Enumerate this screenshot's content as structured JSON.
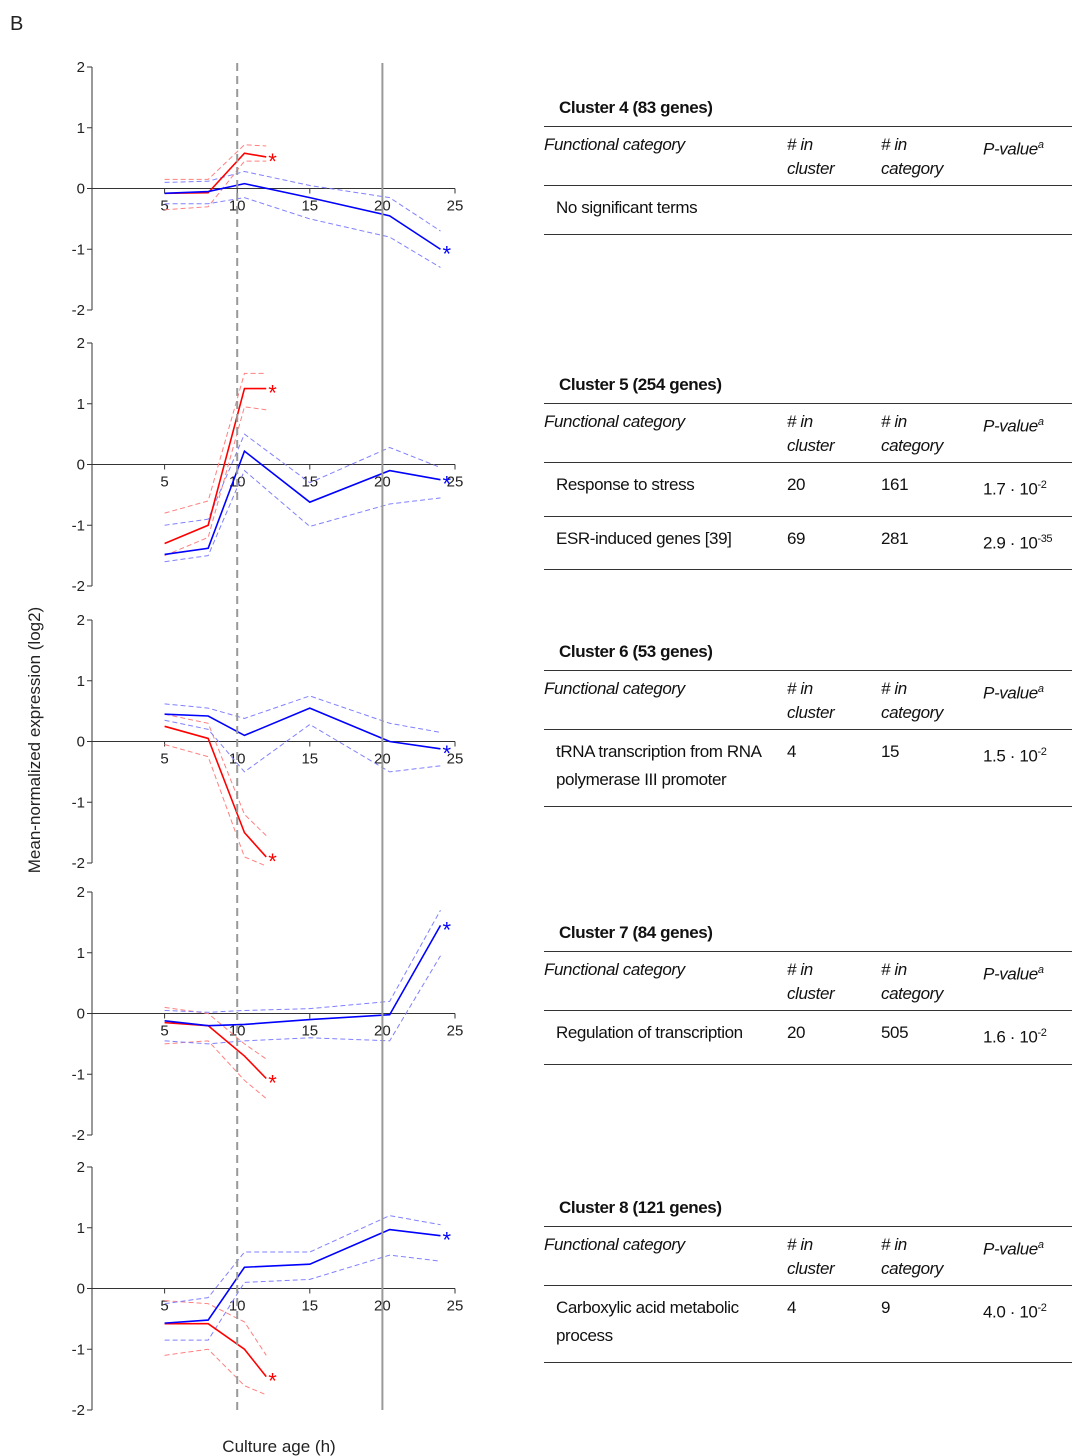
{
  "panel_label": "B",
  "ylabel": "Mean-normalized expression (log2)",
  "xlabel": "Culture age (h)",
  "reference_lines": [
    {
      "x": 10,
      "linestyle": "dashed",
      "color": "#999999"
    },
    {
      "x": 20,
      "linestyle": "solid",
      "color": "#999999"
    }
  ],
  "chart_data": [
    {
      "type": "line",
      "xlim": [
        0,
        25
      ],
      "ylim": [
        -2,
        2
      ],
      "xticks": [
        5,
        10,
        15,
        20,
        25
      ],
      "yticks": [
        -2,
        -1,
        0,
        1,
        2
      ],
      "series": [
        {
          "color": "#ff8080",
          "linestyle": "dashed",
          "x": [
            5,
            8,
            10.5,
            12
          ],
          "values": [
            0.15,
            0.15,
            0.72,
            0.7
          ]
        },
        {
          "color": "#ff8080",
          "linestyle": "dashed",
          "x": [
            5,
            8,
            10.5,
            12
          ],
          "values": [
            -0.35,
            -0.3,
            0.45,
            0.45
          ]
        },
        {
          "color": "#8080ff",
          "linestyle": "dashed",
          "x": [
            5,
            8,
            10.5,
            15,
            20.5,
            24
          ],
          "values": [
            0.1,
            0.12,
            0.28,
            0.05,
            -0.15,
            -0.7
          ]
        },
        {
          "color": "#8080ff",
          "linestyle": "dashed",
          "x": [
            5,
            8,
            10.5,
            15,
            20.5,
            24
          ],
          "values": [
            -0.25,
            -0.25,
            -0.15,
            -0.5,
            -0.8,
            -1.3
          ]
        },
        {
          "color": "#ff0000",
          "linestyle": "solid",
          "x": [
            5,
            8,
            10.5,
            12
          ],
          "values": [
            -0.08,
            -0.07,
            0.58,
            0.52
          ],
          "end_label": "*"
        },
        {
          "color": "#0000ff",
          "linestyle": "solid",
          "x": [
            5,
            8,
            10.5,
            15,
            20.5,
            24
          ],
          "values": [
            -0.08,
            -0.05,
            0.08,
            -0.15,
            -0.45,
            -1.0
          ],
          "end_label": "*"
        }
      ]
    },
    {
      "type": "line",
      "xlim": [
        0,
        25
      ],
      "ylim": [
        -2,
        2
      ],
      "xticks": [
        5,
        10,
        15,
        20,
        25
      ],
      "yticks": [
        -2,
        -1,
        0,
        1,
        2
      ],
      "series": [
        {
          "color": "#ff8080",
          "linestyle": "dashed",
          "x": [
            5,
            8,
            10.5,
            12
          ],
          "values": [
            -0.8,
            -0.6,
            1.5,
            1.5
          ]
        },
        {
          "color": "#ff8080",
          "linestyle": "dashed",
          "x": [
            5,
            8,
            10.5,
            12
          ],
          "values": [
            -1.5,
            -1.2,
            0.95,
            0.9
          ]
        },
        {
          "color": "#8080ff",
          "linestyle": "dashed",
          "x": [
            5,
            8,
            10.5,
            15,
            20.5,
            24
          ],
          "values": [
            -1.0,
            -0.9,
            0.5,
            -0.3,
            0.28,
            -0.05
          ]
        },
        {
          "color": "#8080ff",
          "linestyle": "dashed",
          "x": [
            5,
            8,
            10.5,
            15,
            20.5,
            24
          ],
          "values": [
            -1.6,
            -1.5,
            -0.1,
            -1.02,
            -0.65,
            -0.55
          ]
        },
        {
          "color": "#ff0000",
          "linestyle": "solid",
          "x": [
            5,
            8,
            10.5,
            12
          ],
          "values": [
            -1.3,
            -1.0,
            1.25,
            1.25
          ],
          "end_label": "*"
        },
        {
          "color": "#0000ff",
          "linestyle": "solid",
          "x": [
            5,
            8,
            10.5,
            15,
            20.5,
            24
          ],
          "values": [
            -1.48,
            -1.38,
            0.22,
            -0.62,
            -0.1,
            -0.25
          ],
          "end_label": "*"
        }
      ]
    },
    {
      "type": "line",
      "xlim": [
        0,
        25
      ],
      "ylim": [
        -2,
        2
      ],
      "xticks": [
        5,
        10,
        15,
        20,
        25
      ],
      "yticks": [
        -2,
        -1,
        0,
        1,
        2
      ],
      "series": [
        {
          "color": "#ff8080",
          "linestyle": "dashed",
          "x": [
            5,
            8,
            10.5,
            12
          ],
          "values": [
            0.45,
            0.3,
            -1.2,
            -1.55
          ]
        },
        {
          "color": "#ff8080",
          "linestyle": "dashed",
          "x": [
            5,
            8,
            10.5,
            12
          ],
          "values": [
            -0.05,
            -0.25,
            -1.9,
            -2.05
          ]
        },
        {
          "color": "#8080ff",
          "linestyle": "dashed",
          "x": [
            5,
            8,
            10.5,
            15,
            20.5,
            24
          ],
          "values": [
            0.62,
            0.55,
            0.38,
            0.75,
            0.3,
            0.15
          ]
        },
        {
          "color": "#8080ff",
          "linestyle": "dashed",
          "x": [
            5,
            8,
            10.5,
            15,
            20.5,
            24
          ],
          "values": [
            0.35,
            0.2,
            -0.5,
            0.28,
            -0.5,
            -0.4
          ]
        },
        {
          "color": "#ff0000",
          "linestyle": "solid",
          "x": [
            5,
            8,
            10.5,
            12
          ],
          "values": [
            0.25,
            0.05,
            -1.5,
            -1.9
          ],
          "end_label": "*"
        },
        {
          "color": "#0000ff",
          "linestyle": "solid",
          "x": [
            5,
            8,
            10.5,
            15,
            20.5,
            24
          ],
          "values": [
            0.45,
            0.42,
            0.1,
            0.55,
            0.0,
            -0.12
          ],
          "end_label": "*"
        }
      ]
    },
    {
      "type": "line",
      "xlim": [
        0,
        25
      ],
      "ylim": [
        -2,
        2
      ],
      "xticks": [
        5,
        10,
        15,
        20,
        25
      ],
      "yticks": [
        -2,
        -1,
        0,
        1,
        2
      ],
      "series": [
        {
          "color": "#ff8080",
          "linestyle": "dashed",
          "x": [
            5,
            8,
            10.5,
            12
          ],
          "values": [
            0.1,
            0,
            -0.5,
            -0.75
          ]
        },
        {
          "color": "#ff8080",
          "linestyle": "dashed",
          "x": [
            5,
            8,
            10.5,
            12
          ],
          "values": [
            -0.5,
            -0.45,
            -1.1,
            -1.4
          ]
        },
        {
          "color": "#8080ff",
          "linestyle": "dashed",
          "x": [
            5,
            8,
            10.5,
            15,
            20.5,
            24
          ],
          "values": [
            0.05,
            0.02,
            0.05,
            0.08,
            0.2,
            1.7
          ]
        },
        {
          "color": "#8080ff",
          "linestyle": "dashed",
          "x": [
            5,
            8,
            10.5,
            15,
            20.5,
            24
          ],
          "values": [
            -0.45,
            -0.5,
            -0.45,
            -0.4,
            -0.45,
            0.95
          ]
        },
        {
          "color": "#ff0000",
          "linestyle": "solid",
          "x": [
            5,
            8,
            10.5,
            12
          ],
          "values": [
            -0.15,
            -0.2,
            -0.7,
            -1.07
          ],
          "end_label": "*"
        },
        {
          "color": "#0000ff",
          "linestyle": "solid",
          "x": [
            5,
            8,
            10.5,
            15,
            20.5,
            24
          ],
          "values": [
            -0.12,
            -0.2,
            -0.18,
            -0.1,
            -0.02,
            1.45
          ],
          "end_label": "*"
        }
      ]
    },
    {
      "type": "line",
      "xlim": [
        0,
        25
      ],
      "ylim": [
        -2,
        2
      ],
      "xticks": [
        5,
        10,
        15,
        20,
        25
      ],
      "yticks": [
        -2,
        -1,
        0,
        1,
        2
      ],
      "series": [
        {
          "color": "#ff8080",
          "linestyle": "dashed",
          "x": [
            5,
            8,
            10.5,
            12
          ],
          "values": [
            -0.2,
            -0.25,
            -0.55,
            -1.1
          ]
        },
        {
          "color": "#ff8080",
          "linestyle": "dashed",
          "x": [
            5,
            8,
            10.5,
            12
          ],
          "values": [
            -1.1,
            -1.0,
            -1.6,
            -1.75
          ]
        },
        {
          "color": "#8080ff",
          "linestyle": "dashed",
          "x": [
            5,
            8,
            10.5,
            15,
            20.5,
            24
          ],
          "values": [
            -0.25,
            -0.15,
            0.6,
            0.6,
            1.2,
            1.05
          ]
        },
        {
          "color": "#8080ff",
          "linestyle": "dashed",
          "x": [
            5,
            8,
            10.5,
            15,
            20.5,
            24
          ],
          "values": [
            -0.85,
            -0.85,
            0.1,
            0.15,
            0.55,
            0.45
          ]
        },
        {
          "color": "#ff0000",
          "linestyle": "solid",
          "x": [
            5,
            8,
            10.5,
            12
          ],
          "values": [
            -0.58,
            -0.58,
            -1.0,
            -1.45
          ],
          "end_label": "*"
        },
        {
          "color": "#0000ff",
          "linestyle": "solid",
          "x": [
            5,
            8,
            10.5,
            15,
            20.5,
            24
          ],
          "values": [
            -0.57,
            -0.52,
            0.35,
            0.4,
            0.97,
            0.87
          ],
          "end_label": "*"
        }
      ]
    }
  ],
  "table_header": [
    "Functional category",
    "# in cluster",
    "# in category",
    {
      "text": "P-value",
      "sup": "a"
    }
  ],
  "tables": [
    {
      "title": "Cluster 4 (83 genes)",
      "rows": [
        [
          "No significant terms"
        ]
      ]
    },
    {
      "title": "Cluster 5 (254 genes)",
      "rows": [
        [
          "Response to stress",
          "20",
          "161",
          {
            "text": "1.7 · 10",
            "sup": "-2"
          }
        ],
        [
          "ESR-induced genes [39]",
          "69",
          "281",
          {
            "text": "2.9 · 10",
            "sup": "-35"
          }
        ]
      ]
    },
    {
      "title": "Cluster 6 (53 genes)",
      "rows": [
        [
          "tRNA transcription from RNA polymerase III promoter",
          "4",
          "15",
          {
            "text": "1.5 · 10",
            "sup": "-2"
          }
        ]
      ]
    },
    {
      "title": "Cluster 7 (84 genes)",
      "rows": [
        [
          "Regulation of transcription",
          "20",
          "505",
          {
            "text": "1.6 · 10",
            "sup": "-2"
          }
        ]
      ]
    },
    {
      "title": "Cluster 8 (121 genes)",
      "rows": [
        [
          "Carboxylic acid metabolic process",
          "4",
          "9",
          {
            "text": "4.0 · 10",
            "sup": "-2"
          }
        ]
      ]
    }
  ]
}
